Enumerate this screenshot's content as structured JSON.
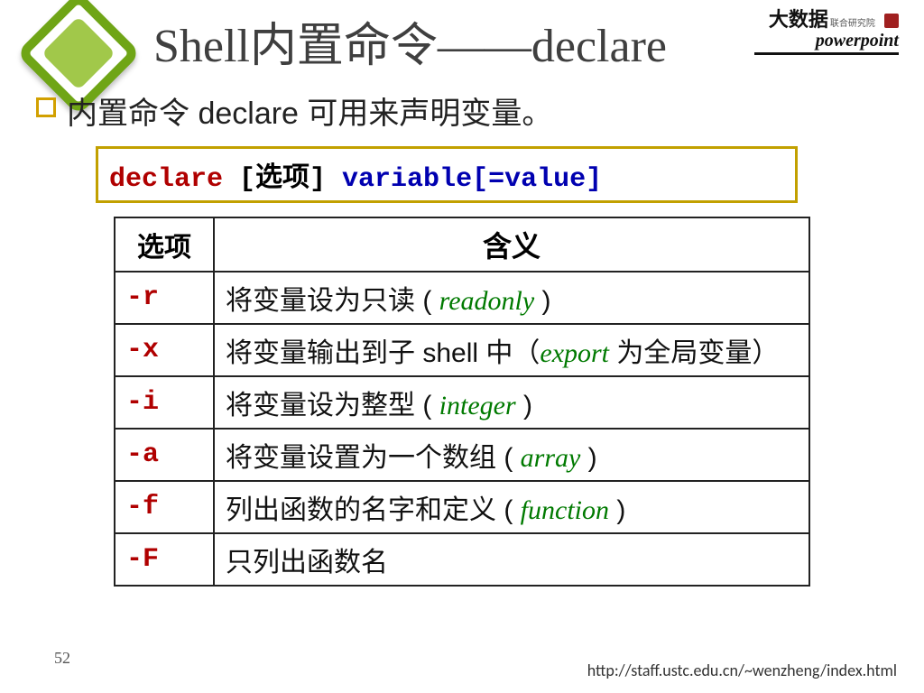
{
  "colors": {
    "logo_border": "#6fa516",
    "logo_fill": "#a1c84a",
    "bullet_border": "#d2a000",
    "syntax_border": "#c2a000",
    "kw_red": "#b00000",
    "kw_blue": "#0000b0",
    "emph_green": "#007a00"
  },
  "title": "Shell内置命令——declare",
  "brand": {
    "line1_main": "大数据",
    "line1_sub": "联合研究院",
    "line2": "powerpoint"
  },
  "bullet": "内置命令 declare 可用来声明变量。",
  "syntax": {
    "cmd": "declare",
    "opt": " [选项] ",
    "rest": "variable[=value]"
  },
  "table": {
    "head_opt": "选项",
    "head_mean": "含义",
    "rows": [
      {
        "flag": "-r",
        "pre": "将变量设为只读 ( ",
        "em": "readonly",
        "post": " )"
      },
      {
        "flag": "-x",
        "pre": "将变量输出到子 shell 中（",
        "em": "export",
        "post": " 为全局变量）"
      },
      {
        "flag": "-i",
        "pre": "将变量设为整型 ( ",
        "em": "integer",
        "post": " )"
      },
      {
        "flag": "-a",
        "pre": "将变量设置为一个数组 ( ",
        "em": "array",
        "post": " )"
      },
      {
        "flag": "-f",
        "pre": "列出函数的名字和定义 ( ",
        "em": "function",
        "post": " )"
      },
      {
        "flag": "-F",
        "pre": "只列出函数名",
        "em": "",
        "post": ""
      }
    ]
  },
  "page_number": "52",
  "footer_url": "http://staff.ustc.edu.cn/~wenzheng/index.html"
}
